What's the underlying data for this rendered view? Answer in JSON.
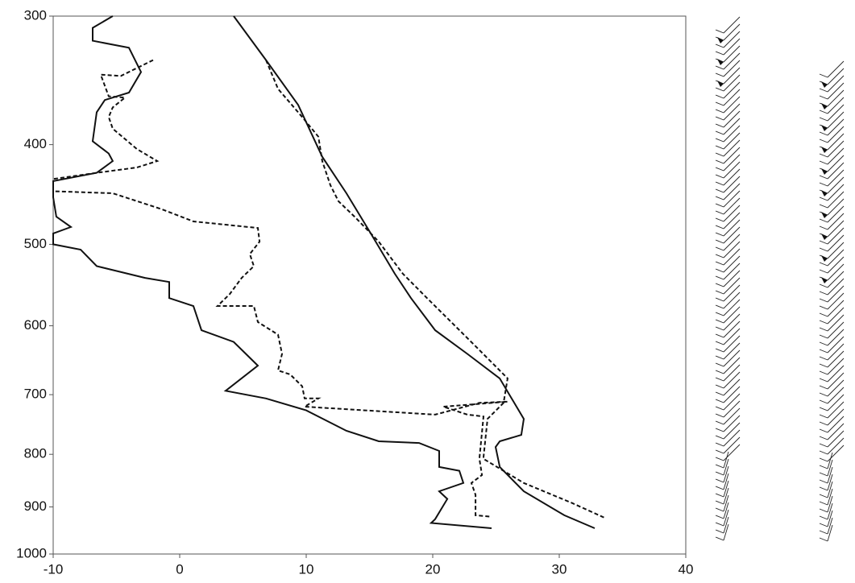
{
  "chart_data": {
    "type": "line",
    "yscale": "log",
    "xlim": [
      -10,
      40
    ],
    "xticks": [
      -10,
      0,
      10,
      20,
      30,
      40
    ],
    "ylim": [
      1000,
      300
    ],
    "yticks": [
      300,
      400,
      500,
      600,
      700,
      800,
      900,
      1000
    ],
    "series": [
      {
        "color": "#111111",
        "style": "solid",
        "x": [
          4.27,
          6.82,
          9.36,
          11.27,
          13.18,
          15.1,
          17.0,
          18.28,
          20.19,
          22.74,
          25.29,
          27.2,
          27.0,
          25.3,
          24.97,
          25.3,
          27.2,
          30.4,
          32.8
        ],
        "values": [
          300,
          331,
          366,
          411,
          446,
          488,
          534,
          564,
          606,
          639,
          675,
          739,
          766,
          777,
          787,
          823,
          869,
          917,
          944
        ]
      },
      {
        "color": "#111111",
        "style": "solid",
        "x": [
          -5.29,
          -6.88,
          -6.88,
          -4.01,
          -3.06,
          -4.01,
          -5.92,
          -6.56,
          -6.88,
          -5.61,
          -5.29,
          -6.56,
          -10,
          -10,
          -9.75,
          -8.6,
          -10,
          -10,
          -7.83,
          -6.56,
          -2.74,
          -0.83,
          -0.83,
          1.08,
          1.72,
          4.27,
          6.18,
          3.63,
          6.82,
          10.0,
          13.18,
          15.73,
          18.92,
          20.51,
          20.51,
          22.1,
          22.42,
          20.51,
          21.15,
          20.19,
          19.87,
          24.65
        ],
        "values": [
          300,
          308,
          317,
          322,
          340,
          356,
          362,
          372,
          397,
          408,
          415,
          426,
          434,
          450,
          470,
          481,
          488,
          500,
          506,
          525,
          539,
          544,
          564,
          574,
          606,
          622,
          656,
          694,
          706,
          725,
          759,
          777,
          780,
          794,
          823,
          830,
          853,
          869,
          884,
          925,
          933,
          944
        ]
      },
      {
        "color": "#111111",
        "style": "dashed",
        "x": [
          6.82,
          7.77,
          9.68,
          10.96,
          11.27,
          11.91,
          12.55,
          13.82,
          15.73,
          17.64,
          19.55,
          21.46,
          23.38,
          25.92,
          25.6,
          24.33,
          24.0,
          27.2,
          31.0,
          33.57
        ],
        "values": [
          331,
          353,
          376,
          393,
          415,
          438,
          454,
          470,
          497,
          534,
          564,
          595,
          628,
          675,
          713,
          739,
          808,
          853,
          892,
          922
        ]
      },
      {
        "color": "#111111",
        "style": "dashed",
        "x": [
          -2.1,
          -3.38,
          -4.65,
          -6.24,
          -5.61,
          -4.33,
          -5.29,
          -5.61,
          -5.29,
          -3.38,
          -1.78,
          -3.38,
          -6.56,
          -10,
          -10,
          -5.29,
          -1.46,
          1.08,
          6.18,
          6.31,
          5.54,
          5.86,
          4.9,
          3.95,
          2.99,
          5.86,
          6.18,
          7.77,
          8.09,
          7.77,
          8.73,
          9.68,
          9.87,
          10.96,
          9.87,
          20.19,
          23.69,
          25.92,
          20.83,
          22.74,
          24.01,
          23.69,
          23.89,
          23.06,
          23.38,
          23.38,
          24.65
        ],
        "values": [
          331,
          337,
          343,
          342,
          359,
          360,
          368,
          376,
          386,
          404,
          415,
          421,
          426,
          432,
          444,
          446,
          462,
          475,
          482,
          497,
          511,
          525,
          539,
          559,
          574,
          574,
          595,
          612,
          639,
          663,
          669,
          687,
          706,
          706,
          719,
          732,
          713,
          711,
          719,
          732,
          735,
          808,
          838,
          853,
          876,
          917,
          920
        ]
      }
    ]
  }
}
